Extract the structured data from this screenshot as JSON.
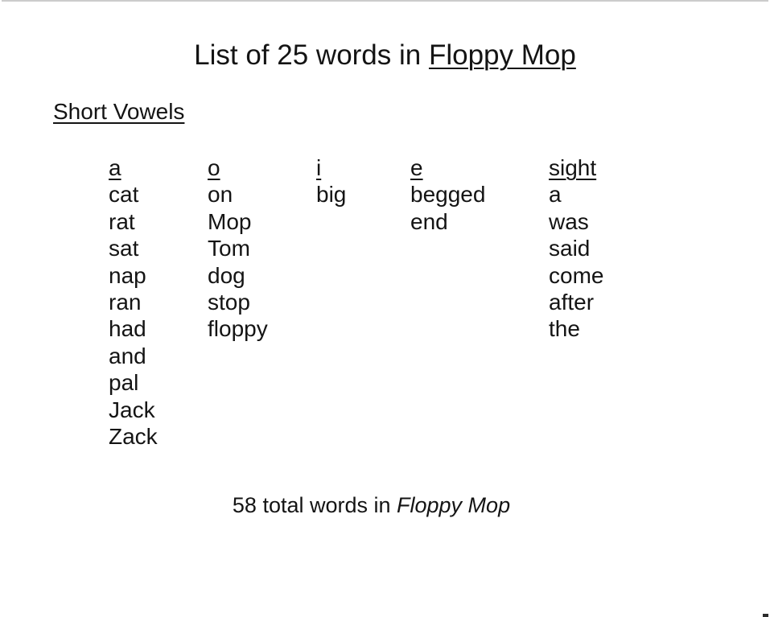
{
  "colors": {
    "text": "#141414",
    "top_line": "#cccccc",
    "corner_mark": "#2b2b2b"
  },
  "title": {
    "prefix": "List of 25 words in ",
    "book": "Floppy Mop"
  },
  "section_heading": "Short Vowels",
  "columns": [
    {
      "header": "a",
      "words": [
        "cat",
        "rat",
        "sat",
        "nap",
        "ran",
        "had",
        "and",
        "pal",
        "Jack",
        "Zack"
      ]
    },
    {
      "header": "o",
      "words": [
        "on",
        "Mop",
        "Tom",
        "dog",
        "stop",
        "floppy"
      ]
    },
    {
      "header": "i",
      "words": [
        "big"
      ]
    },
    {
      "header": "e",
      "words": [
        "begged",
        "end"
      ]
    },
    {
      "header": "sight",
      "words": [
        "a",
        "was",
        "said",
        "come",
        "after",
        "the"
      ]
    }
  ],
  "footer": {
    "prefix": "58 total words in ",
    "book": "Floppy Mop"
  }
}
